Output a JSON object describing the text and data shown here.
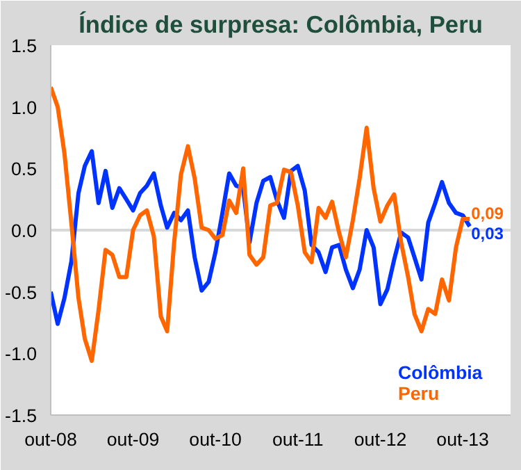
{
  "chart_data": {
    "type": "line",
    "title": "Índice de surpresa: Colômbia, Peru",
    "x": [
      "2008-10",
      "2008-11",
      "2008-12",
      "2009-01",
      "2009-02",
      "2009-03",
      "2009-04",
      "2009-05",
      "2009-06",
      "2009-07",
      "2009-08",
      "2009-09",
      "2009-10",
      "2009-11",
      "2009-12",
      "2010-01",
      "2010-02",
      "2010-03",
      "2010-04",
      "2010-05",
      "2010-06",
      "2010-07",
      "2010-08",
      "2010-09",
      "2010-10",
      "2010-11",
      "2010-12",
      "2011-01",
      "2011-02",
      "2011-03",
      "2011-04",
      "2011-05",
      "2011-06",
      "2011-07",
      "2011-08",
      "2011-09",
      "2011-10",
      "2011-11",
      "2011-12",
      "2012-01",
      "2012-02",
      "2012-03",
      "2012-04",
      "2012-05",
      "2012-06",
      "2012-07",
      "2012-08",
      "2012-09",
      "2012-10",
      "2012-11",
      "2012-12",
      "2013-01",
      "2013-02",
      "2013-03",
      "2013-04",
      "2013-05",
      "2013-06",
      "2013-07",
      "2013-08",
      "2013-09",
      "2013-10",
      "2013-11"
    ],
    "series": [
      {
        "name": "Colômbia",
        "color": "#0033ff",
        "values": [
          -0.5,
          -0.76,
          -0.55,
          -0.25,
          0.3,
          0.52,
          0.64,
          0.22,
          0.48,
          0.18,
          0.34,
          0.25,
          0.16,
          0.3,
          0.36,
          0.46,
          0.2,
          0.02,
          0.14,
          0.08,
          0.16,
          -0.22,
          -0.49,
          -0.42,
          -0.18,
          0.14,
          0.46,
          0.36,
          0.34,
          -0.1,
          0.22,
          0.4,
          0.43,
          0.24,
          0.1,
          0.48,
          0.52,
          0.32,
          -0.12,
          -0.18,
          -0.34,
          -0.14,
          -0.12,
          -0.32,
          -0.47,
          -0.32,
          0,
          -0.14,
          -0.6,
          -0.48,
          -0.24,
          -0.02,
          -0.06,
          -0.22,
          -0.4,
          0.06,
          0.22,
          0.39,
          0.22,
          0.14,
          0.12,
          0.03
        ],
        "value_labels": [
          null,
          null,
          null,
          null,
          null,
          null,
          null,
          null,
          null,
          null,
          null,
          null,
          null,
          null,
          null,
          null,
          null,
          null,
          null,
          null,
          null,
          null,
          null,
          null,
          null,
          null,
          null,
          null,
          null,
          null,
          null,
          null,
          null,
          null,
          null,
          null,
          null,
          null,
          null,
          null,
          null,
          null,
          null,
          null,
          null,
          null,
          null,
          null,
          null,
          null,
          null,
          null,
          null,
          null,
          null,
          null,
          null,
          null,
          null,
          null,
          null,
          "0,03"
        ]
      },
      {
        "name": "Peru",
        "color": "#ff6600",
        "values": [
          1.16,
          1.0,
          0.62,
          0.05,
          -0.55,
          -0.88,
          -1.06,
          -0.65,
          -0.16,
          -0.2,
          -0.38,
          -0.38,
          0.0,
          0.12,
          0.16,
          -0.05,
          -0.7,
          -0.82,
          -0.1,
          0.45,
          0.68,
          0.42,
          0.02,
          0.0,
          -0.07,
          -0.04,
          0.24,
          0.14,
          0.5,
          -0.2,
          -0.28,
          -0.22,
          0.2,
          0.22,
          0.49,
          0.47,
          0.2,
          -0.18,
          -0.26,
          0.18,
          0.1,
          0.23,
          -0.02,
          -0.22,
          0.08,
          0.42,
          0.83,
          0.34,
          0.07,
          0.2,
          0.29,
          -0.1,
          -0.38,
          -0.68,
          -0.82,
          -0.64,
          -0.68,
          -0.4,
          -0.57,
          -0.14,
          0.09,
          0.09
        ],
        "value_labels": [
          null,
          null,
          null,
          null,
          null,
          null,
          null,
          null,
          null,
          null,
          null,
          null,
          null,
          null,
          null,
          null,
          null,
          null,
          null,
          null,
          null,
          null,
          null,
          null,
          null,
          null,
          null,
          null,
          null,
          null,
          null,
          null,
          null,
          null,
          null,
          null,
          null,
          null,
          null,
          null,
          null,
          null,
          null,
          null,
          null,
          null,
          null,
          null,
          null,
          null,
          null,
          null,
          null,
          null,
          null,
          null,
          null,
          null,
          null,
          null,
          null,
          "0,09"
        ]
      }
    ],
    "xlim": [
      "2008-10",
      "2014-05"
    ],
    "xticks": [
      {
        "value": "2008-10",
        "label": "out-08"
      },
      {
        "value": "2009-10",
        "label": "out-09"
      },
      {
        "value": "2010-10",
        "label": "out-10"
      },
      {
        "value": "2011-10",
        "label": "out-11"
      },
      {
        "value": "2012-10",
        "label": "out-12"
      },
      {
        "value": "2013-10",
        "label": "out-13"
      }
    ],
    "ylim": [
      -1.5,
      1.5
    ],
    "yticks": [
      {
        "value": -1.5,
        "label": "-1.5"
      },
      {
        "value": -1.0,
        "label": "-1.0"
      },
      {
        "value": -0.5,
        "label": "-0.5"
      },
      {
        "value": 0,
        "label": "0.0"
      },
      {
        "value": 0.5,
        "label": "0.5"
      },
      {
        "value": 1.0,
        "label": "1.0"
      },
      {
        "value": 1.5,
        "label": "1.5"
      }
    ],
    "ref_lines": [
      {
        "axis": "y",
        "value": 0,
        "color": "#d9d9d9"
      }
    ],
    "grid": false,
    "legend": "bottom right",
    "line_style": "solid"
  }
}
